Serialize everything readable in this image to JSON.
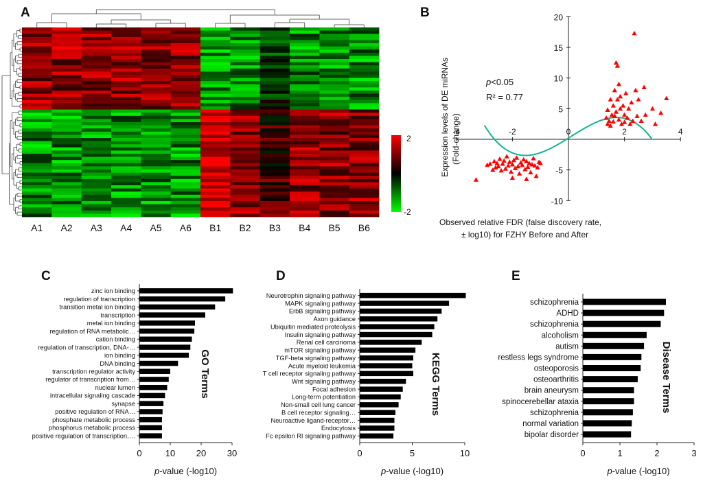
{
  "panels": {
    "A": "A",
    "B": "B",
    "C": "C",
    "D": "D",
    "E": "E"
  },
  "chart_data": [
    {
      "id": "A",
      "type": "heatmap",
      "columns": [
        "A1",
        "A2",
        "A3",
        "A4",
        "A5",
        "A6",
        "B1",
        "B2",
        "B3",
        "B4",
        "B5",
        "B6"
      ],
      "row_count": 60,
      "group_split_row": 26,
      "column_group_split": 6,
      "color_scale": {
        "min": -2,
        "max": 2,
        "low": "#00ff00",
        "mid": "#000000",
        "high": "#ff0000"
      },
      "legend_ticks": [
        "2",
        "-2"
      ]
    },
    {
      "id": "B",
      "type": "scatter",
      "xlabel_lines": [
        "Observed relative FDR (false discovery rate,",
        "± log10) for FZHY Before and After"
      ],
      "ylabel_lines": [
        "Expression levels of DE miRNAs",
        "(Fold-change)"
      ],
      "xlim": [
        -4,
        4
      ],
      "ylim": [
        -10,
        20
      ],
      "xticks": [
        -4,
        -2,
        0,
        2,
        4
      ],
      "yticks": [
        -10,
        -5,
        0,
        5,
        10,
        15,
        20
      ],
      "annotation_p": "p<0.05",
      "annotation_r2": "R² = 0.77",
      "marker_color": "#ff0000",
      "fit_color": "#12b58a",
      "points": [
        [
          -2.9,
          -4.2
        ],
        [
          -2.7,
          -5.0
        ],
        [
          -2.65,
          -3.6
        ],
        [
          -2.6,
          -4.6
        ],
        [
          -2.55,
          -3.9
        ],
        [
          -2.5,
          -4.4
        ],
        [
          -2.45,
          -3.2
        ],
        [
          -2.4,
          -5.1
        ],
        [
          -2.35,
          -4.0
        ],
        [
          -2.3,
          -3.5
        ],
        [
          -2.25,
          -4.8
        ],
        [
          -2.2,
          -2.8
        ],
        [
          -2.15,
          -4.3
        ],
        [
          -2.1,
          -3.7
        ],
        [
          -2.05,
          -5.3
        ],
        [
          -2.0,
          -4.1
        ],
        [
          -1.95,
          -3.4
        ],
        [
          -1.9,
          -4.7
        ],
        [
          -1.85,
          -3.0
        ],
        [
          -1.8,
          -4.4
        ],
        [
          -1.75,
          -5.6
        ],
        [
          -1.7,
          -3.8
        ],
        [
          -1.65,
          -4.2
        ],
        [
          -1.6,
          -3.3
        ],
        [
          -1.55,
          -4.9
        ],
        [
          -1.5,
          -3.6
        ],
        [
          -1.45,
          -4.5
        ],
        [
          -1.4,
          -3.9
        ],
        [
          -1.35,
          -5.4
        ],
        [
          -1.3,
          -4.1
        ],
        [
          -1.25,
          -3.1
        ],
        [
          -1.2,
          -4.3
        ],
        [
          -1.15,
          -6.0
        ],
        [
          -1.1,
          -4.6
        ],
        [
          -1.05,
          -3.7
        ],
        [
          -3.3,
          -6.6
        ],
        [
          -1.5,
          -6.5
        ],
        [
          -2.0,
          -6.3
        ],
        [
          -1.0,
          -3.9
        ],
        [
          -2.8,
          -4.0
        ],
        [
          1.35,
          3.5
        ],
        [
          1.4,
          2.5
        ],
        [
          1.4,
          4.8
        ],
        [
          1.45,
          3.0
        ],
        [
          1.5,
          6.5
        ],
        [
          1.5,
          2.2
        ],
        [
          1.55,
          4.0
        ],
        [
          1.6,
          5.5
        ],
        [
          1.6,
          2.9
        ],
        [
          1.65,
          8.0
        ],
        [
          1.65,
          3.8
        ],
        [
          1.7,
          12.5
        ],
        [
          1.7,
          4.5
        ],
        [
          1.75,
          12.0
        ],
        [
          1.75,
          6.5
        ],
        [
          1.8,
          9.0
        ],
        [
          1.8,
          3.2
        ],
        [
          1.85,
          7.0
        ],
        [
          1.85,
          5.0
        ],
        [
          1.9,
          2.5
        ],
        [
          1.95,
          5.5
        ],
        [
          2.0,
          4.0
        ],
        [
          2.0,
          2.8
        ],
        [
          2.05,
          7.5
        ],
        [
          2.1,
          3.5
        ],
        [
          2.15,
          5.0
        ],
        [
          2.2,
          2.5
        ],
        [
          2.25,
          6.0
        ],
        [
          2.3,
          3.0
        ],
        [
          2.35,
          17.3
        ],
        [
          2.4,
          8.0
        ],
        [
          2.45,
          3.8
        ],
        [
          2.5,
          6.5
        ],
        [
          2.6,
          3.0
        ],
        [
          2.7,
          8.5
        ],
        [
          2.75,
          4.0
        ],
        [
          3.0,
          5.0
        ],
        [
          3.1,
          2.5
        ],
        [
          3.3,
          4.3
        ],
        [
          3.5,
          6.7
        ]
      ]
    },
    {
      "id": "C",
      "type": "bar",
      "orientation": "horizontal",
      "rotated_title": "GO Terms",
      "xlabel_italic": "p",
      "xlabel_rest": "-value (-log10)",
      "xlim": [
        0,
        30
      ],
      "xticks": [
        0,
        10,
        20,
        30
      ],
      "categories": [
        "zinc ion binding",
        "regulation of transcription",
        "transition metal ion binding",
        "transcription",
        "metal ion binding",
        "regulation of RNA metabolic…",
        "cation binding",
        "regulation of transcription, DNA-…",
        "ion binding",
        "DNA binding",
        "transcription regulator activity",
        "regulator of transcription from…",
        "nuclear lumen",
        "intracellular signaling cascade",
        "synapse",
        "positive regulation of RNA…",
        "phosphate metabolic process",
        "phosphorus metabolic process",
        "positive regulation of transcription,…"
      ],
      "values": [
        30.3,
        27.8,
        24.5,
        21.3,
        18.0,
        17.8,
        17.0,
        16.5,
        16.0,
        12.5,
        10.0,
        9.5,
        9.0,
        8.3,
        7.8,
        7.5,
        7.3,
        7.3,
        7.3
      ]
    },
    {
      "id": "D",
      "type": "bar",
      "orientation": "horizontal",
      "rotated_title": "KEGG Terms",
      "xlabel_italic": "p",
      "xlabel_rest": "-value (-log10)",
      "xlim": [
        0,
        10
      ],
      "xticks": [
        0,
        5,
        10
      ],
      "categories": [
        "Neurotrophin signaling pathway",
        "MAPK signaling pathway",
        "ErbB signaling pathway",
        "Axon guidance",
        "Ubiquitin mediated proteolysis",
        "Insulin signaling pathway",
        "Renal cell carcinoma",
        "mTOR signaling pathway",
        "TGF-beta signaling pathway",
        "Acute myeloid leukemia",
        "T cell receptor signaling pathway",
        "Wnt signaling pathway",
        "Focal adhesion",
        "Long-term potentiation",
        "Non-small cell lung cancer",
        "B cell receptor signaling…",
        "Neuroactive ligand-receptor…",
        "Endocytosis",
        "Fc epsilon RI signaling pathway"
      ],
      "values": [
        10.1,
        8.5,
        7.8,
        7.4,
        7.1,
        6.9,
        5.9,
        5.3,
        5.1,
        5.0,
        5.1,
        4.4,
        4.1,
        3.9,
        3.7,
        3.4,
        3.3,
        3.3,
        3.2
      ]
    },
    {
      "id": "E",
      "type": "bar",
      "orientation": "horizontal",
      "rotated_title": "Disease Terms",
      "xlabel_italic": "p",
      "xlabel_rest": "-value (-log10)",
      "xlim": [
        0,
        3
      ],
      "xticks": [
        0,
        1,
        2,
        3
      ],
      "categories": [
        "schizophrenia",
        "ADHD",
        "schizophrenia",
        "alcoholism",
        "autism",
        "restless legs syndrome",
        "osteoporosis",
        "osteoarthritis",
        "brain aneurysm",
        "spinocerebellar ataxia",
        "schizophrenia",
        "normal variation",
        "bipolar disorder"
      ],
      "values": [
        2.24,
        2.19,
        2.1,
        1.72,
        1.65,
        1.58,
        1.56,
        1.48,
        1.38,
        1.38,
        1.35,
        1.32,
        1.3
      ]
    }
  ]
}
